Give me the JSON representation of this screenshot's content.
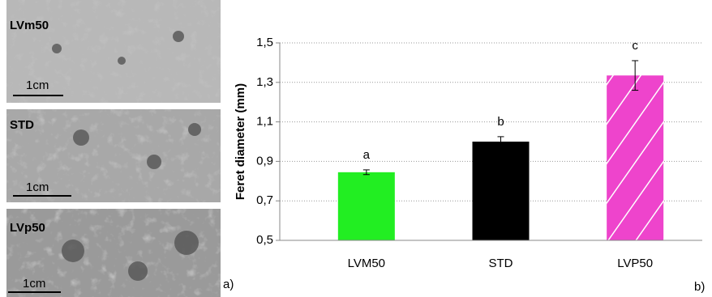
{
  "photos": [
    {
      "label": "LVm50",
      "color": "#22ee22",
      "scale": "1cm"
    },
    {
      "label": "STD",
      "color": "#000000",
      "scale": "1cm"
    },
    {
      "label": "LVp50",
      "color": "#ee2288",
      "scale": "1cm"
    }
  ],
  "panel_labels": [
    "a)",
    "b)"
  ],
  "chart_data": {
    "type": "bar",
    "y_label": "Feret diameter (mm)",
    "categories": [
      "LVM50",
      "STD",
      "LVP50"
    ],
    "values": [
      0.845,
      1.0,
      1.335
    ],
    "errors": [
      0.012,
      0.025,
      0.075
    ],
    "letters": [
      "a",
      "b",
      "c"
    ],
    "colors": [
      "#22ee22",
      "#000000",
      "#ee44cc"
    ],
    "hatch": [
      false,
      false,
      true
    ],
    "ylim": [
      0.5,
      1.5
    ],
    "yticks": [
      {
        "value": 0.5,
        "label": "0,5"
      },
      {
        "value": 0.7,
        "label": "0,7"
      },
      {
        "value": 0.9,
        "label": "0,9"
      },
      {
        "value": 1.1,
        "label": "1,1"
      },
      {
        "value": 1.3,
        "label": "1,3"
      },
      {
        "value": 1.5,
        "label": "1,5"
      }
    ],
    "grid": true
  }
}
